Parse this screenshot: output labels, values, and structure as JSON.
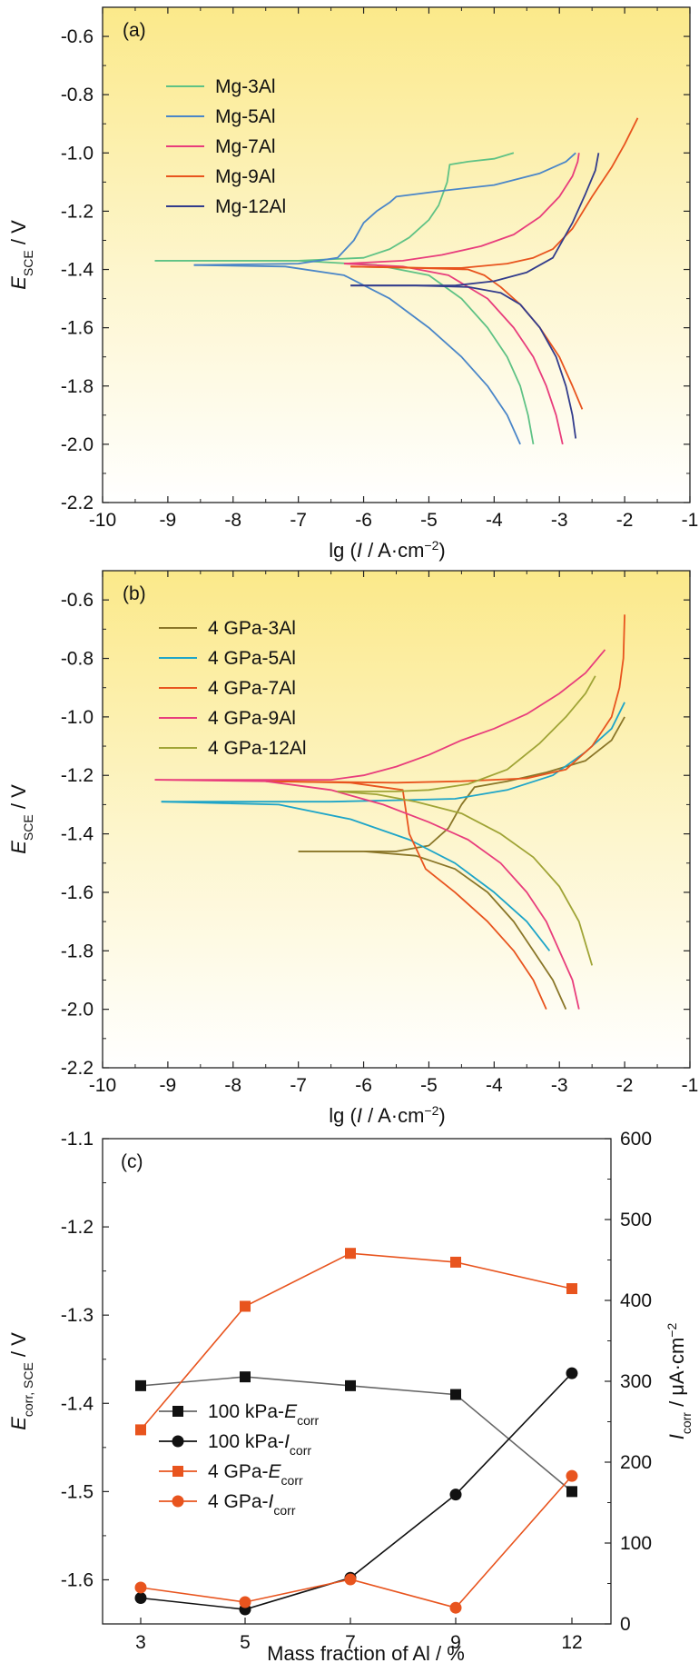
{
  "chart_data": [
    {
      "panel_label": "(a)",
      "type": "line",
      "xlabel": {
        "pre": "lg (",
        "ital": "I",
        "post": " / A·cm",
        "sup": "−2",
        "end": ")"
      },
      "ylabel": {
        "main": "E",
        "sub": "SCE",
        "post": " / V"
      },
      "xlim": [
        -10,
        -1
      ],
      "ylim": [
        -2.2,
        -0.5
      ],
      "xticks": [
        -10,
        -9,
        -8,
        -7,
        -6,
        -5,
        -4,
        -3,
        -2,
        -1
      ],
      "yticks": [
        -0.6,
        -0.8,
        -1.0,
        -1.2,
        -1.4,
        -1.6,
        -1.8,
        -2.0,
        -2.2
      ],
      "ytick_labels": [
        "-0.6",
        "-0.8",
        "-1.0",
        "-1.2",
        "-1.4",
        "-1.6",
        "-1.8",
        "-2.0",
        "-2.2"
      ],
      "legend_position": "upper-left",
      "background": "yellow-to-white vertical gradient",
      "series": [
        {
          "name": "Mg-3Al",
          "color": "#5fc285",
          "cathodic": [
            [
              -3.4,
              -2.0
            ],
            [
              -3.48,
              -1.9
            ],
            [
              -3.6,
              -1.8
            ],
            [
              -3.8,
              -1.7
            ],
            [
              -4.1,
              -1.6
            ],
            [
              -4.5,
              -1.5
            ],
            [
              -5.0,
              -1.42
            ],
            [
              -5.8,
              -1.385
            ],
            [
              -7.0,
              -1.37
            ],
            [
              -8.5,
              -1.37
            ],
            [
              -9.2,
              -1.37
            ]
          ],
          "anodic": [
            [
              -9.2,
              -1.37
            ],
            [
              -7.0,
              -1.37
            ],
            [
              -6.0,
              -1.36
            ],
            [
              -5.6,
              -1.33
            ],
            [
              -5.3,
              -1.29
            ],
            [
              -5.0,
              -1.23
            ],
            [
              -4.85,
              -1.18
            ],
            [
              -4.72,
              -1.1
            ],
            [
              -4.68,
              -1.04
            ],
            [
              -4.4,
              -1.03
            ],
            [
              -4.0,
              -1.02
            ],
            [
              -3.7,
              -1.0
            ]
          ]
        },
        {
          "name": "Mg-5Al",
          "color": "#4a86c8",
          "cathodic": [
            [
              -3.6,
              -2.0
            ],
            [
              -3.8,
              -1.9
            ],
            [
              -4.1,
              -1.8
            ],
            [
              -4.5,
              -1.7
            ],
            [
              -5.0,
              -1.6
            ],
            [
              -5.6,
              -1.5
            ],
            [
              -6.3,
              -1.42
            ],
            [
              -7.2,
              -1.39
            ],
            [
              -8.6,
              -1.385
            ]
          ],
          "anodic": [
            [
              -8.6,
              -1.385
            ],
            [
              -7.0,
              -1.38
            ],
            [
              -6.4,
              -1.36
            ],
            [
              -6.15,
              -1.3
            ],
            [
              -6.0,
              -1.24
            ],
            [
              -5.8,
              -1.2
            ],
            [
              -5.6,
              -1.17
            ],
            [
              -5.5,
              -1.15
            ],
            [
              -4.8,
              -1.13
            ],
            [
              -4.0,
              -1.11
            ],
            [
              -3.3,
              -1.07
            ],
            [
              -2.9,
              -1.03
            ],
            [
              -2.75,
              -1.0
            ]
          ]
        },
        {
          "name": "Mg-7Al",
          "color": "#e83d7c",
          "cathodic": [
            [
              -2.95,
              -2.0
            ],
            [
              -3.05,
              -1.9
            ],
            [
              -3.2,
              -1.8
            ],
            [
              -3.4,
              -1.7
            ],
            [
              -3.7,
              -1.6
            ],
            [
              -4.1,
              -1.5
            ],
            [
              -4.7,
              -1.42
            ],
            [
              -5.4,
              -1.39
            ],
            [
              -6.3,
              -1.38
            ]
          ],
          "anodic": [
            [
              -6.3,
              -1.38
            ],
            [
              -5.4,
              -1.37
            ],
            [
              -4.8,
              -1.35
            ],
            [
              -4.2,
              -1.32
            ],
            [
              -3.7,
              -1.28
            ],
            [
              -3.3,
              -1.22
            ],
            [
              -3.0,
              -1.15
            ],
            [
              -2.8,
              -1.08
            ],
            [
              -2.72,
              -1.03
            ],
            [
              -2.7,
              -1.0
            ]
          ]
        },
        {
          "name": "Mg-9Al",
          "color": "#e8541e",
          "cathodic": [
            [
              -2.65,
              -1.88
            ],
            [
              -2.8,
              -1.8
            ],
            [
              -3.0,
              -1.7
            ],
            [
              -3.3,
              -1.6
            ],
            [
              -3.6,
              -1.52
            ],
            [
              -3.9,
              -1.46
            ],
            [
              -4.15,
              -1.42
            ],
            [
              -4.4,
              -1.4
            ],
            [
              -5.2,
              -1.395
            ],
            [
              -6.2,
              -1.39
            ]
          ],
          "anodic": [
            [
              -6.2,
              -1.39
            ],
            [
              -5.0,
              -1.395
            ],
            [
              -4.5,
              -1.395
            ],
            [
              -3.8,
              -1.38
            ],
            [
              -3.4,
              -1.36
            ],
            [
              -3.1,
              -1.33
            ],
            [
              -2.8,
              -1.26
            ],
            [
              -2.5,
              -1.15
            ],
            [
              -2.2,
              -1.05
            ],
            [
              -2.0,
              -0.97
            ],
            [
              -1.8,
              -0.88
            ]
          ]
        },
        {
          "name": "Mg-12Al",
          "color": "#323c8c",
          "cathodic": [
            [
              -2.75,
              -1.98
            ],
            [
              -2.8,
              -1.9
            ],
            [
              -2.9,
              -1.8
            ],
            [
              -3.05,
              -1.7
            ],
            [
              -3.3,
              -1.6
            ],
            [
              -3.6,
              -1.52
            ],
            [
              -3.9,
              -1.48
            ],
            [
              -4.4,
              -1.46
            ],
            [
              -5.2,
              -1.455
            ],
            [
              -6.2,
              -1.455
            ]
          ],
          "anodic": [
            [
              -6.2,
              -1.455
            ],
            [
              -4.6,
              -1.455
            ],
            [
              -4.0,
              -1.44
            ],
            [
              -3.5,
              -1.41
            ],
            [
              -3.1,
              -1.36
            ],
            [
              -2.8,
              -1.24
            ],
            [
              -2.6,
              -1.14
            ],
            [
              -2.45,
              -1.06
            ],
            [
              -2.4,
              -1.0
            ]
          ]
        }
      ]
    },
    {
      "panel_label": "(b)",
      "type": "line",
      "xlabel": {
        "pre": "lg (",
        "ital": "I",
        "post": " / A·cm",
        "sup": "−2",
        "end": ")"
      },
      "ylabel": {
        "main": "E",
        "sub": "SCE",
        "post": " / V"
      },
      "xlim": [
        -10,
        -1
      ],
      "ylim": [
        -2.2,
        -0.5
      ],
      "xticks": [
        -10,
        -9,
        -8,
        -7,
        -6,
        -5,
        -4,
        -3,
        -2,
        -1
      ],
      "yticks": [
        -0.6,
        -0.8,
        -1.0,
        -1.2,
        -1.4,
        -1.6,
        -1.8,
        -2.0,
        -2.2
      ],
      "ytick_labels": [
        "-0.6",
        "-0.8",
        "-1.0",
        "-1.2",
        "-1.4",
        "-1.6",
        "-1.8",
        "-2.0",
        "-2.2"
      ],
      "legend_position": "upper-left",
      "background": "yellow-to-white vertical gradient",
      "series": [
        {
          "name": "4 GPa-3Al",
          "color": "#8a7628",
          "cathodic": [
            [
              -2.9,
              -2.0
            ],
            [
              -3.1,
              -1.9
            ],
            [
              -3.4,
              -1.8
            ],
            [
              -3.7,
              -1.7
            ],
            [
              -4.1,
              -1.6
            ],
            [
              -4.6,
              -1.52
            ],
            [
              -5.2,
              -1.475
            ],
            [
              -6.0,
              -1.46
            ],
            [
              -7.0,
              -1.46
            ]
          ],
          "anodic": [
            [
              -7.0,
              -1.46
            ],
            [
              -5.5,
              -1.46
            ],
            [
              -5.0,
              -1.44
            ],
            [
              -4.7,
              -1.38
            ],
            [
              -4.5,
              -1.3
            ],
            [
              -4.3,
              -1.24
            ],
            [
              -3.8,
              -1.22
            ],
            [
              -3.2,
              -1.19
            ],
            [
              -2.6,
              -1.15
            ],
            [
              -2.2,
              -1.08
            ],
            [
              -2.0,
              -1.0
            ]
          ]
        },
        {
          "name": "4 GPa-5Al",
          "color": "#1ea5c8",
          "cathodic": [
            [
              -3.15,
              -1.8
            ],
            [
              -3.5,
              -1.7
            ],
            [
              -4.0,
              -1.6
            ],
            [
              -4.6,
              -1.5
            ],
            [
              -5.3,
              -1.42
            ],
            [
              -6.2,
              -1.35
            ],
            [
              -7.3,
              -1.3
            ],
            [
              -9.1,
              -1.29
            ]
          ],
          "anodic": [
            [
              -9.1,
              -1.29
            ],
            [
              -6.5,
              -1.29
            ],
            [
              -5.5,
              -1.285
            ],
            [
              -4.6,
              -1.28
            ],
            [
              -3.8,
              -1.25
            ],
            [
              -3.1,
              -1.2
            ],
            [
              -2.6,
              -1.12
            ],
            [
              -2.2,
              -1.04
            ],
            [
              -2.0,
              -0.95
            ]
          ]
        },
        {
          "name": "4 GPa-7Al",
          "color": "#e8541e",
          "cathodic": [
            [
              -3.2,
              -2.0
            ],
            [
              -3.4,
              -1.9
            ],
            [
              -3.7,
              -1.8
            ],
            [
              -4.1,
              -1.7
            ],
            [
              -4.6,
              -1.6
            ],
            [
              -5.05,
              -1.52
            ],
            [
              -5.3,
              -1.4
            ],
            [
              -5.4,
              -1.25
            ],
            [
              -6.2,
              -1.225
            ],
            [
              -7.5,
              -1.22
            ]
          ],
          "anodic": [
            [
              -7.5,
              -1.22
            ],
            [
              -5.5,
              -1.225
            ],
            [
              -4.5,
              -1.22
            ],
            [
              -3.5,
              -1.21
            ],
            [
              -2.9,
              -1.18
            ],
            [
              -2.5,
              -1.1
            ],
            [
              -2.2,
              -1.0
            ],
            [
              -2.08,
              -0.9
            ],
            [
              -2.02,
              -0.8
            ],
            [
              -2.0,
              -0.65
            ]
          ]
        },
        {
          "name": "4 GPa-9Al",
          "color": "#e83d7c",
          "cathodic": [
            [
              -2.7,
              -2.0
            ],
            [
              -2.8,
              -1.9
            ],
            [
              -3.0,
              -1.8
            ],
            [
              -3.2,
              -1.7
            ],
            [
              -3.5,
              -1.6
            ],
            [
              -3.9,
              -1.5
            ],
            [
              -4.4,
              -1.42
            ],
            [
              -5.0,
              -1.36
            ],
            [
              -5.7,
              -1.3
            ],
            [
              -6.5,
              -1.25
            ],
            [
              -7.5,
              -1.22
            ],
            [
              -9.2,
              -1.215
            ]
          ],
          "anodic": [
            [
              -9.2,
              -1.215
            ],
            [
              -6.5,
              -1.215
            ],
            [
              -6.0,
              -1.2
            ],
            [
              -5.5,
              -1.17
            ],
            [
              -5.0,
              -1.13
            ],
            [
              -4.5,
              -1.08
            ],
            [
              -4.0,
              -1.04
            ],
            [
              -3.5,
              -0.99
            ],
            [
              -3.0,
              -0.92
            ],
            [
              -2.6,
              -0.85
            ],
            [
              -2.3,
              -0.77
            ]
          ]
        },
        {
          "name": "4 GPa-12Al",
          "color": "#a0a436",
          "cathodic": [
            [
              -2.5,
              -1.85
            ],
            [
              -2.7,
              -1.7
            ],
            [
              -3.0,
              -1.58
            ],
            [
              -3.4,
              -1.48
            ],
            [
              -3.9,
              -1.4
            ],
            [
              -4.5,
              -1.33
            ],
            [
              -5.2,
              -1.29
            ],
            [
              -5.8,
              -1.265
            ],
            [
              -6.4,
              -1.255
            ]
          ],
          "anodic": [
            [
              -6.4,
              -1.255
            ],
            [
              -5.5,
              -1.255
            ],
            [
              -5.0,
              -1.25
            ],
            [
              -4.4,
              -1.23
            ],
            [
              -3.8,
              -1.18
            ],
            [
              -3.3,
              -1.09
            ],
            [
              -2.9,
              -1.0
            ],
            [
              -2.6,
              -0.92
            ],
            [
              -2.45,
              -0.86
            ]
          ]
        }
      ]
    },
    {
      "panel_label": "(c)",
      "type": "line",
      "xlabel": "Mass fraction of Al / %",
      "ylabel_left": {
        "main": "E",
        "sub": "corr, SCE",
        "post": " / V"
      },
      "ylabel_right": {
        "main": "I",
        "sub": "corr",
        "post": " / μA·cm",
        "sup": "−2"
      },
      "categories": [
        "3",
        "5",
        "7",
        "9",
        "12"
      ],
      "ylim_left": [
        -1.65,
        -1.1
      ],
      "yticks_left": [
        -1.1,
        -1.2,
        -1.3,
        -1.4,
        -1.5,
        -1.6
      ],
      "ytick_labels_left": [
        "-1.1",
        "-1.2",
        "-1.3",
        "-1.4",
        "-1.5",
        "-1.6"
      ],
      "ylim_right": [
        0,
        600
      ],
      "yticks_right": [
        0,
        100,
        200,
        300,
        400,
        500,
        600
      ],
      "legend_position": "lower-left",
      "series": [
        {
          "name_pre": "100 kPa-",
          "name_ital": "E",
          "name_sub": "corr",
          "axis": "left",
          "marker": "square",
          "color": "#111111",
          "line_color": "#666666",
          "values": [
            -1.38,
            -1.37,
            -1.38,
            -1.39,
            -1.5
          ]
        },
        {
          "name_pre": "100 kPa-",
          "name_ital": "I",
          "name_sub": "corr",
          "axis": "right",
          "marker": "circle",
          "color": "#111111",
          "line_color": "#111111",
          "values": [
            32,
            18,
            57,
            160,
            310
          ]
        },
        {
          "name_pre": "4 GPa-",
          "name_ital": "E",
          "name_sub": "corr",
          "axis": "left",
          "marker": "square",
          "color": "#e8541e",
          "line_color": "#e8541e",
          "values": [
            -1.43,
            -1.29,
            -1.23,
            -1.24,
            -1.27
          ]
        },
        {
          "name_pre": "4 GPa-",
          "name_ital": "I",
          "name_sub": "corr",
          "axis": "right",
          "marker": "circle",
          "color": "#e8541e",
          "line_color": "#e8541e",
          "values": [
            45,
            27,
            55,
            20,
            183
          ]
        }
      ]
    }
  ]
}
